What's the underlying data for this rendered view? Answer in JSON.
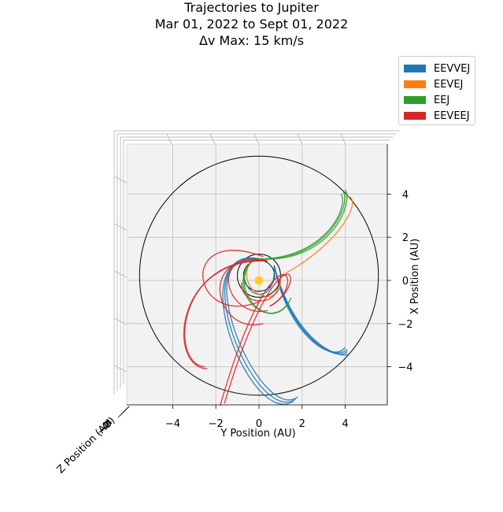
{
  "chart_data": {
    "type": "line",
    "title": [
      "Trajectories to Jupiter",
      "Mar 01, 2022 to Sept 01, 2022",
      "Δv Max: 15 km/s"
    ],
    "xlabel": "Y Position (AU)",
    "ylabel": "X Position (AU)",
    "zlabel": "Z Position (AU)",
    "projection": "3d-top-view",
    "xlim": [
      -6,
      6
    ],
    "ylim": [
      6,
      -6
    ],
    "xticks": [
      "−4",
      "−2",
      "0",
      "2",
      "4"
    ],
    "yticks": [
      "−4",
      "−2",
      "0",
      "2",
      "4"
    ],
    "zticks": [
      "−4",
      "−2",
      "0",
      "2",
      "4"
    ],
    "grid": true,
    "legend_position": "top-right, outside",
    "series": [
      {
        "name": "EEVVEJ",
        "color": "#1f77b4"
      },
      {
        "name": "EEVEJ",
        "color": "#ff7f0e"
      },
      {
        "name": "EEJ",
        "color": "#2ca02c"
      },
      {
        "name": "EEVEEJ",
        "color": "#d62728"
      }
    ],
    "reference_orbits": [
      {
        "body": "Venus",
        "radius_au": 0.72
      },
      {
        "body": "Earth",
        "radius_au": 1.0
      },
      {
        "body": "Jupiter",
        "radius_au": 5.2
      }
    ],
    "sun": {
      "x": 0,
      "y": 0,
      "color": "#ffcc33"
    },
    "trajectories": [
      {
        "series": "EEVVEJ",
        "start": [
          0,
          -1.0
        ],
        "c1": [
          -3.6,
          -1.6
        ],
        "c2": [
          -0.2,
          6.8
        ],
        "end": [
          1.7,
          5.5
        ]
      },
      {
        "series": "EEVVEJ",
        "start": [
          0,
          -1.0
        ],
        "c1": [
          -3.7,
          -1.5
        ],
        "c2": [
          -0.4,
          6.9
        ],
        "end": [
          1.6,
          5.6
        ]
      },
      {
        "series": "EEVVEJ",
        "start": [
          0,
          -1.0
        ],
        "c1": [
          -3.5,
          -1.7
        ],
        "c2": [
          0.0,
          6.7
        ],
        "end": [
          1.8,
          5.4
        ]
      },
      {
        "series": "EEVVEJ",
        "start": [
          0.7,
          -0.7
        ],
        "c1": [
          1.4,
          2.6
        ],
        "c2": [
          3.5,
          3.8
        ],
        "end": [
          4.1,
          3.2
        ]
      },
      {
        "series": "EEVVEJ",
        "start": [
          0.7,
          -0.7
        ],
        "c1": [
          1.5,
          2.7
        ],
        "c2": [
          3.6,
          3.8
        ],
        "end": [
          4.1,
          3.3
        ]
      },
      {
        "series": "EEVVEJ",
        "start": [
          0.7,
          -0.7
        ],
        "c1": [
          1.3,
          2.5
        ],
        "c2": [
          3.4,
          3.9
        ],
        "end": [
          4.0,
          3.1
        ]
      },
      {
        "series": "EEVVEJ",
        "start": [
          0.7,
          -0.7
        ],
        "c1": [
          1.6,
          2.8
        ],
        "c2": [
          3.7,
          3.7
        ],
        "end": [
          4.2,
          3.4
        ]
      },
      {
        "series": "EEVVEJ",
        "start": [
          -0.7,
          -0.3
        ],
        "c1": [
          -0.6,
          1.0
        ],
        "c2": [
          0.8,
          1.0
        ],
        "end": [
          0.7,
          -0.6
        ]
      },
      {
        "series": "EEVEJ",
        "start": [
          1.0,
          -0.2
        ],
        "c1": [
          4.0,
          -1.8
        ],
        "c2": [
          4.9,
          -4.0
        ],
        "end": [
          4.0,
          -3.9
        ]
      },
      {
        "series": "EEVEJ",
        "start": [
          1.0,
          -0.1
        ],
        "c1": [
          1.1,
          1.5
        ],
        "c2": [
          -1.2,
          0.6
        ],
        "end": [
          -0.4,
          -0.9
        ]
      },
      {
        "series": "EEJ",
        "start": [
          -0.2,
          -1.0
        ],
        "c1": [
          3.2,
          -0.8
        ],
        "c2": [
          4.3,
          -3.6
        ],
        "end": [
          3.9,
          -4.1
        ]
      },
      {
        "series": "EEJ",
        "start": [
          -0.2,
          -1.0
        ],
        "c1": [
          3.0,
          -0.9
        ],
        "c2": [
          4.2,
          -3.4
        ],
        "end": [
          3.8,
          -4.0
        ]
      },
      {
        "series": "EEJ",
        "start": [
          -0.2,
          -1.0
        ],
        "c1": [
          3.4,
          -0.7
        ],
        "c2": [
          4.4,
          -3.7
        ],
        "end": [
          4.0,
          -4.2
        ]
      },
      {
        "series": "EEJ",
        "start": [
          -0.2,
          -1.0
        ],
        "c1": [
          -1.6,
          0.2
        ],
        "c2": [
          0.4,
          2.6
        ],
        "end": [
          1.4,
          1.0
        ]
      },
      {
        "series": "EEJ",
        "start": [
          -0.2,
          -1.0
        ],
        "c1": [
          -1.8,
          0.4
        ],
        "c2": [
          0.6,
          2.7
        ],
        "end": [
          1.5,
          0.8
        ]
      },
      {
        "series": "EEVEEJ",
        "start": [
          0.4,
          -0.9
        ],
        "c1": [
          -3.8,
          -1.2
        ],
        "c2": [
          -4.2,
          3.9
        ],
        "end": [
          -2.5,
          4.0
        ]
      },
      {
        "series": "EEVEEJ",
        "start": [
          0.4,
          -0.9
        ],
        "c1": [
          -3.9,
          -1.1
        ],
        "c2": [
          -4.3,
          4.0
        ],
        "end": [
          -2.4,
          4.1
        ]
      },
      {
        "series": "EEVEEJ",
        "start": [
          0.4,
          -0.9
        ],
        "c1": [
          -3.0,
          -1.4
        ],
        "c2": [
          -2.0,
          2.6
        ],
        "end": [
          0.2,
          2.0
        ]
      },
      {
        "series": "EEVEEJ",
        "start": [
          0.4,
          -0.9
        ],
        "c1": [
          -2.4,
          -1.5
        ],
        "c2": [
          -1.6,
          1.8
        ],
        "end": [
          0.4,
          1.4
        ]
      },
      {
        "series": "EEVEEJ",
        "start": [
          0.5,
          1.2
        ],
        "c1": [
          2.4,
          0.2
        ],
        "c2": [
          0.8,
          -3.2
        ],
        "end": [
          -1.8,
          5.8
        ]
      },
      {
        "series": "EEVEEJ",
        "start": [
          0.5,
          1.2
        ],
        "c1": [
          2.6,
          0.0
        ],
        "c2": [
          1.0,
          -3.0
        ],
        "end": [
          -1.6,
          5.7
        ]
      },
      {
        "series": "EEVEEJ",
        "start": [
          -0.8,
          0.1
        ],
        "c1": [
          -0.9,
          1.2
        ],
        "c2": [
          1.0,
          1.3
        ],
        "end": [
          0.9,
          0.0
        ]
      },
      {
        "series": "EEVEEJ",
        "start": [
          0.0,
          1.0
        ],
        "c1": [
          -3.2,
          2.2
        ],
        "c2": [
          -3.8,
          -2.6
        ],
        "end": [
          0.2,
          -1.1
        ]
      }
    ]
  }
}
